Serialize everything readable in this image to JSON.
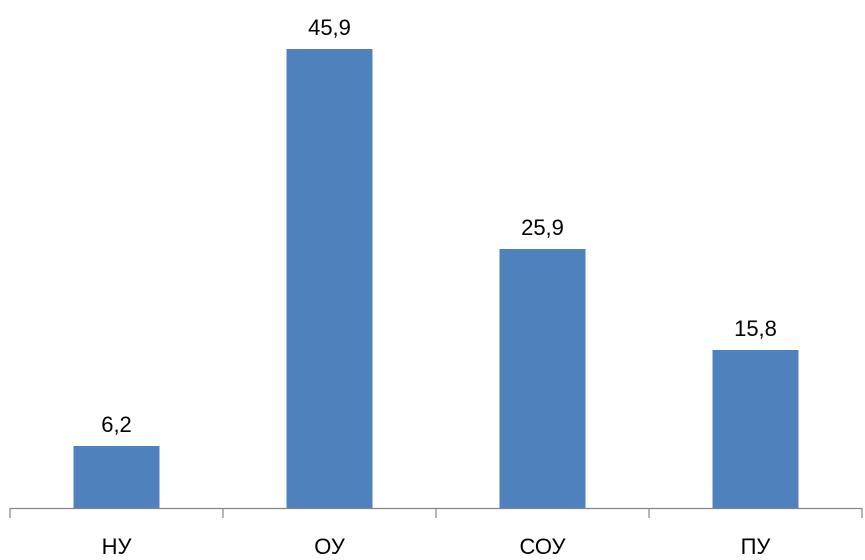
{
  "chart_data": {
    "type": "bar",
    "categories": [
      "НУ",
      "ОУ",
      "СОУ",
      "ПУ"
    ],
    "values": [
      6.2,
      45.9,
      25.9,
      15.8
    ],
    "data_labels": [
      "6,2",
      "45,9",
      "25,9",
      "15,8"
    ],
    "title": "",
    "xlabel": "",
    "ylabel": "",
    "ylim": [
      0,
      50
    ],
    "grid": false,
    "legend": "none",
    "bar_color": "#4F81BD",
    "axis_color": "#868686"
  }
}
